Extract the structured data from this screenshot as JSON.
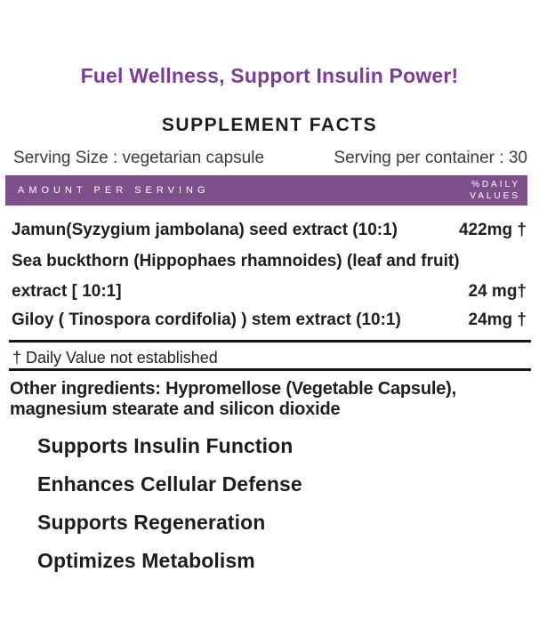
{
  "colors": {
    "title_purple": "#7a3d98",
    "bar_purple": "#7d4f8b",
    "text_dark": "#1f1f21"
  },
  "header": {
    "tagline": "Fuel Wellness, Support Insulin Power!",
    "panel_title": "SUPPLEMENT FACTS"
  },
  "serving": {
    "size_label": "Serving Size :",
    "size_value": "vegetarian capsule",
    "container_label": "Serving per container :",
    "container_value": "30"
  },
  "table": {
    "header_left": "AMOUNT PER SERVING",
    "header_right": [
      "%DAILY",
      "VALUES"
    ],
    "rows": [
      {
        "name": "Jamun(Syzygium jambolana) seed extract (10:1)",
        "amount": "422mg †"
      },
      {
        "name": "Sea buckthorn (Hippophaes rhamnoides) (leaf and fruit)",
        "amount": ""
      },
      {
        "name": "extract [ 10:1]",
        "amount": "24 mg†"
      },
      {
        "name": "Giloy ( Tinospora cordifolia) ) stem extract (10:1)",
        "amount": "24mg †"
      }
    ],
    "footnote": "† Daily Value not established"
  },
  "other_ingredients": {
    "line1": "Other ingredients: Hypromellose  (Vegetable Capsule),",
    "line2": "magnesium  stearate and silicon dioxide"
  },
  "benefits": [
    "Supports Insulin Function",
    "Enhances Cellular Defense",
    "Supports Regeneration",
    "Optimizes Metabolism"
  ]
}
